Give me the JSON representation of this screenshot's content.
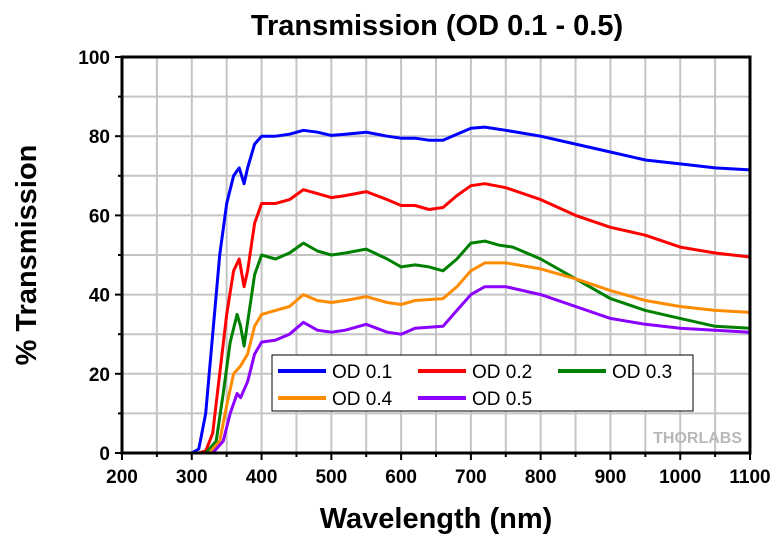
{
  "chart_data": {
    "type": "line",
    "title": "Transmission (OD 0.1 - 0.5)",
    "xlabel": "Wavelength (nm)",
    "ylabel": "% Transmission",
    "xlim": [
      200,
      1100
    ],
    "ylim": [
      0,
      100
    ],
    "xticks": [
      200,
      300,
      400,
      500,
      600,
      700,
      800,
      900,
      1000,
      1100
    ],
    "yticks": [
      0,
      20,
      40,
      60,
      80,
      100
    ],
    "grid": true,
    "legend_position": "lower-center",
    "watermark": "THORLABS",
    "series": [
      {
        "name": "OD 0.1",
        "color": "#0000ff",
        "points": [
          [
            200,
            0
          ],
          [
            300,
            0
          ],
          [
            310,
            1
          ],
          [
            320,
            10
          ],
          [
            330,
            30
          ],
          [
            340,
            50
          ],
          [
            350,
            63
          ],
          [
            360,
            70
          ],
          [
            368,
            72
          ],
          [
            375,
            68
          ],
          [
            380,
            72
          ],
          [
            390,
            78
          ],
          [
            400,
            80
          ],
          [
            420,
            80
          ],
          [
            440,
            80.5
          ],
          [
            460,
            81.5
          ],
          [
            480,
            81
          ],
          [
            500,
            80.2
          ],
          [
            520,
            80.5
          ],
          [
            550,
            81
          ],
          [
            580,
            80
          ],
          [
            600,
            79.5
          ],
          [
            620,
            79.5
          ],
          [
            640,
            79
          ],
          [
            660,
            79
          ],
          [
            680,
            80.5
          ],
          [
            700,
            82
          ],
          [
            720,
            82.3
          ],
          [
            750,
            81.5
          ],
          [
            800,
            80
          ],
          [
            850,
            78
          ],
          [
            900,
            76
          ],
          [
            950,
            74
          ],
          [
            1000,
            73
          ],
          [
            1050,
            72
          ],
          [
            1100,
            71.5
          ]
        ]
      },
      {
        "name": "OD 0.2",
        "color": "#ff0000",
        "points": [
          [
            200,
            0
          ],
          [
            310,
            0
          ],
          [
            320,
            0.5
          ],
          [
            330,
            5
          ],
          [
            340,
            20
          ],
          [
            350,
            35
          ],
          [
            360,
            46
          ],
          [
            368,
            49
          ],
          [
            375,
            42
          ],
          [
            380,
            46
          ],
          [
            390,
            58
          ],
          [
            400,
            63
          ],
          [
            420,
            63
          ],
          [
            440,
            64
          ],
          [
            460,
            66.5
          ],
          [
            480,
            65.5
          ],
          [
            500,
            64.5
          ],
          [
            520,
            65
          ],
          [
            550,
            66
          ],
          [
            580,
            64
          ],
          [
            600,
            62.5
          ],
          [
            620,
            62.5
          ],
          [
            640,
            61.5
          ],
          [
            660,
            62
          ],
          [
            680,
            65
          ],
          [
            700,
            67.5
          ],
          [
            720,
            68
          ],
          [
            750,
            67
          ],
          [
            800,
            64
          ],
          [
            850,
            60
          ],
          [
            900,
            57
          ],
          [
            950,
            55
          ],
          [
            1000,
            52
          ],
          [
            1050,
            50.5
          ],
          [
            1100,
            49.5
          ]
        ]
      },
      {
        "name": "OD 0.3",
        "color": "#008000",
        "points": [
          [
            200,
            0
          ],
          [
            320,
            0
          ],
          [
            335,
            3
          ],
          [
            345,
            15
          ],
          [
            355,
            28
          ],
          [
            365,
            35
          ],
          [
            370,
            32
          ],
          [
            375,
            27
          ],
          [
            380,
            33
          ],
          [
            390,
            45
          ],
          [
            400,
            50
          ],
          [
            420,
            49
          ],
          [
            440,
            50.5
          ],
          [
            460,
            53
          ],
          [
            480,
            51
          ],
          [
            500,
            50
          ],
          [
            520,
            50.5
          ],
          [
            550,
            51.5
          ],
          [
            580,
            49
          ],
          [
            600,
            47
          ],
          [
            620,
            47.5
          ],
          [
            640,
            47
          ],
          [
            660,
            46
          ],
          [
            680,
            49
          ],
          [
            700,
            53
          ],
          [
            720,
            53.5
          ],
          [
            740,
            52.5
          ],
          [
            760,
            52
          ],
          [
            800,
            49
          ],
          [
            850,
            44
          ],
          [
            900,
            39
          ],
          [
            950,
            36
          ],
          [
            1000,
            34
          ],
          [
            1050,
            32
          ],
          [
            1100,
            31.5
          ]
        ]
      },
      {
        "name": "OD 0.4",
        "color": "#ff8c00",
        "points": [
          [
            200,
            0
          ],
          [
            325,
            0
          ],
          [
            340,
            3
          ],
          [
            350,
            12
          ],
          [
            360,
            20
          ],
          [
            370,
            22
          ],
          [
            380,
            25
          ],
          [
            390,
            32
          ],
          [
            400,
            35
          ],
          [
            420,
            36
          ],
          [
            440,
            37
          ],
          [
            460,
            40
          ],
          [
            480,
            38.5
          ],
          [
            500,
            38
          ],
          [
            520,
            38.5
          ],
          [
            550,
            39.5
          ],
          [
            580,
            38
          ],
          [
            600,
            37.5
          ],
          [
            620,
            38.5
          ],
          [
            660,
            39
          ],
          [
            680,
            42
          ],
          [
            700,
            46
          ],
          [
            720,
            48
          ],
          [
            750,
            48
          ],
          [
            800,
            46.5
          ],
          [
            850,
            44
          ],
          [
            900,
            41
          ],
          [
            950,
            38.5
          ],
          [
            1000,
            37
          ],
          [
            1050,
            36
          ],
          [
            1100,
            35.5
          ]
        ]
      },
      {
        "name": "OD 0.5",
        "color": "#8b00ff",
        "points": [
          [
            200,
            0
          ],
          [
            330,
            0
          ],
          [
            345,
            3
          ],
          [
            355,
            10
          ],
          [
            365,
            15
          ],
          [
            370,
            14
          ],
          [
            380,
            18
          ],
          [
            390,
            25
          ],
          [
            400,
            28
          ],
          [
            420,
            28.5
          ],
          [
            440,
            30
          ],
          [
            460,
            33
          ],
          [
            480,
            31
          ],
          [
            500,
            30.5
          ],
          [
            520,
            31
          ],
          [
            550,
            32.5
          ],
          [
            580,
            30.5
          ],
          [
            600,
            30
          ],
          [
            620,
            31.5
          ],
          [
            660,
            32
          ],
          [
            680,
            36
          ],
          [
            700,
            40
          ],
          [
            720,
            42
          ],
          [
            750,
            42
          ],
          [
            800,
            40
          ],
          [
            850,
            37
          ],
          [
            900,
            34
          ],
          [
            950,
            32.5
          ],
          [
            1000,
            31.5
          ],
          [
            1050,
            31
          ],
          [
            1100,
            30.5
          ]
        ]
      }
    ]
  }
}
